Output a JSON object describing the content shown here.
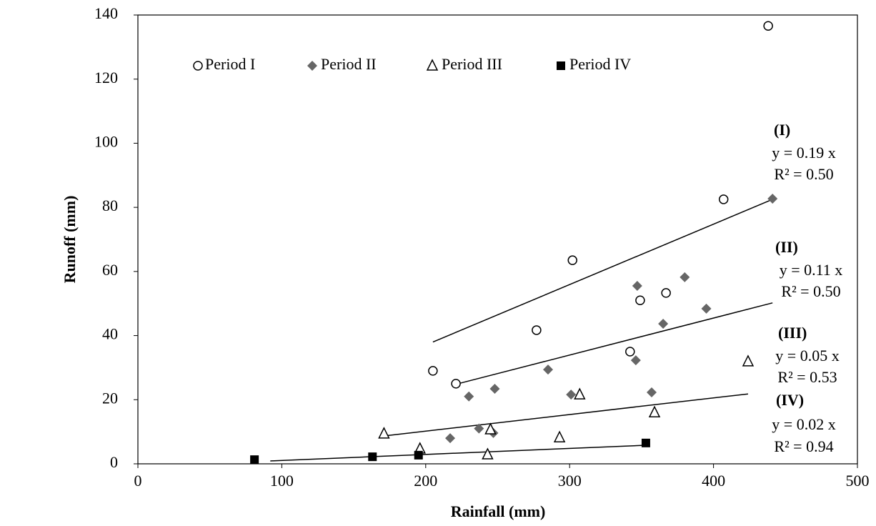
{
  "chart_data": {
    "type": "scatter",
    "x_label": "Rainfall (mm)",
    "y_label": "Runoff (mm)",
    "xlim": [
      0,
      500
    ],
    "xticks": [
      0,
      100,
      200,
      300,
      400,
      500
    ],
    "ylim": [
      0,
      140
    ],
    "yticks": [
      0,
      20,
      40,
      60,
      80,
      100,
      120,
      140
    ],
    "grid": false,
    "legend_position": "top",
    "series": [
      {
        "name": "Period I",
        "marker": "circle",
        "color": "#000000",
        "x": [
          205,
          221,
          277,
          302,
          342,
          349,
          367,
          407,
          438
        ],
        "values": [
          29,
          25,
          41.7,
          63.5,
          35,
          51,
          53.3,
          82.5,
          136.6
        ]
      },
      {
        "name": "Period II",
        "marker": "diamond",
        "color": "#666666",
        "x": [
          217,
          230,
          237,
          247,
          248,
          285,
          301,
          346,
          347,
          357,
          365,
          380,
          395,
          441
        ],
        "values": [
          8,
          21,
          11,
          9.6,
          23.4,
          29.4,
          21.6,
          32.3,
          55.5,
          22.3,
          43.7,
          58.2,
          48.4,
          82.7
        ]
      },
      {
        "name": "Period III",
        "marker": "triangle",
        "color": "#000000",
        "x": [
          171,
          196,
          243,
          245,
          293,
          307,
          359,
          424
        ],
        "values": [
          9.4,
          4.7,
          2.9,
          10.7,
          8.2,
          21.6,
          16,
          31.9
        ]
      },
      {
        "name": "Period IV",
        "marker": "square",
        "color": "#000000",
        "x": [
          81,
          163,
          195,
          353
        ],
        "values": [
          1.3,
          2.2,
          2.7,
          6.5
        ]
      }
    ],
    "trendlines": [
      {
        "label": "(I)",
        "equation": "y = 0.19 x",
        "r2": "R² = 0.50",
        "x": [
          205,
          441
        ],
        "y": [
          38,
          82.5
        ]
      },
      {
        "label": "(II)",
        "equation": "y = 0.11 x",
        "r2": "R² = 0.50",
        "x": [
          220,
          441
        ],
        "y": [
          24.7,
          50.2
        ]
      },
      {
        "label": "(III)",
        "equation": "y = 0.05 x",
        "r2": "R² = 0.53",
        "x": [
          171,
          424
        ],
        "y": [
          8.7,
          21.8
        ]
      },
      {
        "label": "(IV)",
        "equation": "y = 0.02 x",
        "r2": "R² = 0.94",
        "x": [
          92,
          353
        ],
        "y": [
          0.9,
          5.8
        ]
      }
    ]
  }
}
